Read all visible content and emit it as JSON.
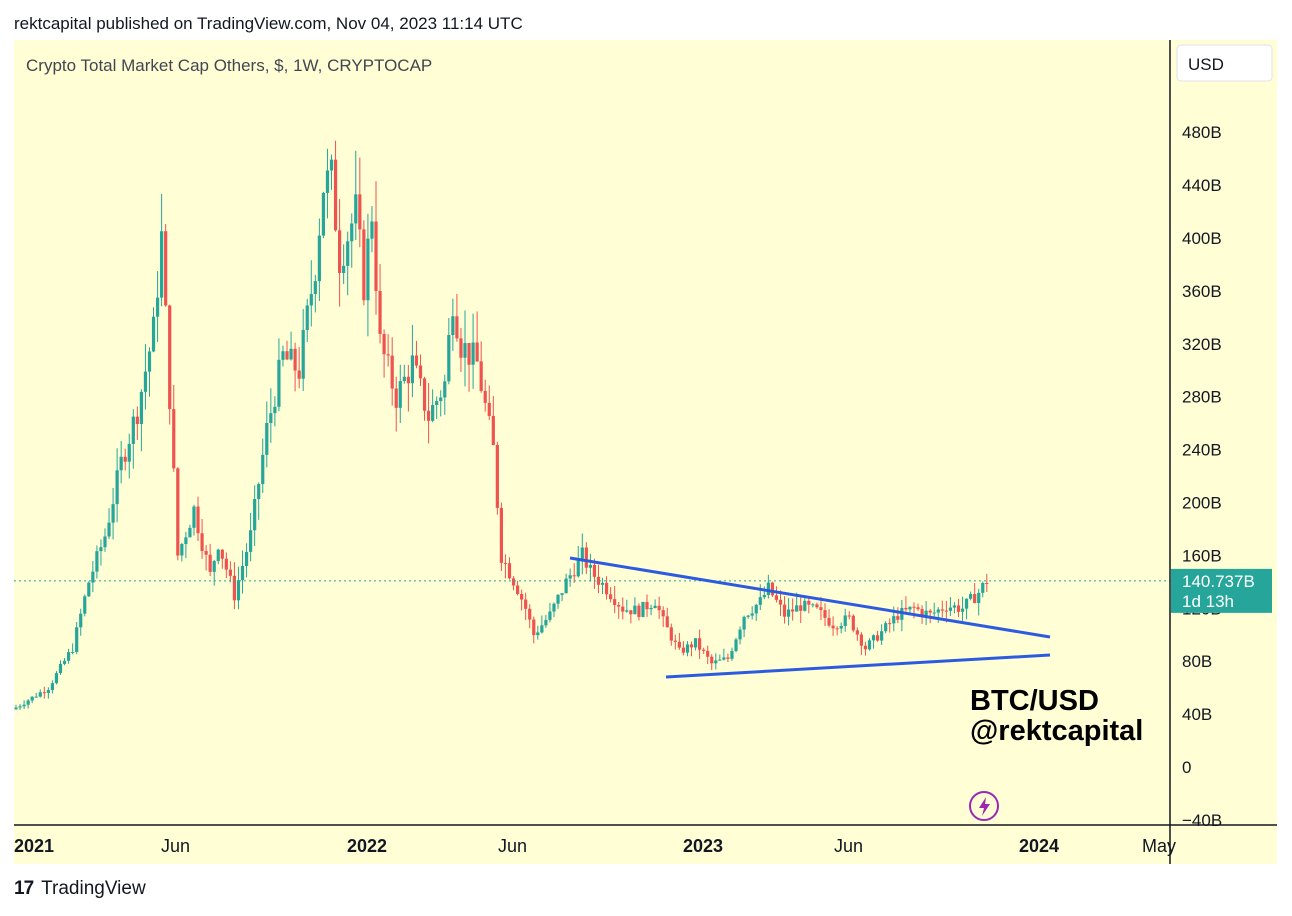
{
  "header": {
    "published_text": "rektcapital published on TradingView.com, Nov 04, 2023 11:14 UTC"
  },
  "chart_data": {
    "type": "candlestick",
    "title": "Crypto Total Market Cap Others, $, 1W, CRYPTOCAP",
    "currency_button": "USD",
    "y_ticks": [
      "480B",
      "440B",
      "400B",
      "360B",
      "320B",
      "280B",
      "240B",
      "200B",
      "160B",
      "120B",
      "80B",
      "40B",
      "0",
      "−40B"
    ],
    "y_tick_values": [
      480,
      440,
      400,
      360,
      320,
      280,
      240,
      200,
      160,
      120,
      80,
      40,
      0,
      -40
    ],
    "x_ticks": [
      "2021",
      "Jun",
      "2022",
      "Jun",
      "2023",
      "Jun",
      "2024",
      "May"
    ],
    "x_ticks_bold": [
      true,
      false,
      true,
      false,
      true,
      false,
      true,
      false
    ],
    "ylim": [
      -40,
      500
    ],
    "grid": false,
    "last_price": {
      "value": 140.737,
      "label": "140.737B",
      "countdown": "1d 13h",
      "color": "#26a69a"
    },
    "up_color": "#26a69a",
    "down_color": "#ef5350",
    "annotation": {
      "line1": "BTC/USD",
      "line2": "@rektcapital"
    },
    "trendlines_color": "#2d5bdf",
    "weekly_close_path": [
      [
        0,
        45
      ],
      [
        8,
        60
      ],
      [
        14,
        90
      ],
      [
        18,
        140
      ],
      [
        22,
        175
      ],
      [
        26,
        230
      ],
      [
        30,
        270
      ],
      [
        34,
        330
      ],
      [
        36,
        400
      ],
      [
        40,
        160
      ],
      [
        44,
        195
      ],
      [
        48,
        145
      ],
      [
        50,
        170
      ],
      [
        54,
        130
      ],
      [
        58,
        175
      ],
      [
        62,
        255
      ],
      [
        66,
        310
      ],
      [
        70,
        300
      ],
      [
        74,
        380
      ],
      [
        76,
        440
      ],
      [
        78,
        445
      ],
      [
        80,
        385
      ],
      [
        84,
        420
      ],
      [
        86,
        365
      ],
      [
        88,
        420
      ],
      [
        90,
        320
      ],
      [
        94,
        280
      ],
      [
        98,
        305
      ],
      [
        102,
        265
      ],
      [
        106,
        290
      ],
      [
        108,
        355
      ],
      [
        110,
        320
      ],
      [
        114,
        305
      ],
      [
        118,
        240
      ],
      [
        120,
        160
      ],
      [
        124,
        135
      ],
      [
        126,
        120
      ],
      [
        128,
        100
      ],
      [
        132,
        115
      ],
      [
        136,
        140
      ],
      [
        140,
        160
      ],
      [
        142,
        148
      ],
      [
        146,
        135
      ],
      [
        150,
        120
      ],
      [
        154,
        118
      ],
      [
        158,
        126
      ],
      [
        160,
        110
      ],
      [
        164,
        87
      ],
      [
        168,
        94
      ],
      [
        172,
        78
      ],
      [
        176,
        82
      ],
      [
        180,
        115
      ],
      [
        184,
        125
      ],
      [
        186,
        135
      ],
      [
        190,
        115
      ],
      [
        194,
        122
      ],
      [
        198,
        118
      ],
      [
        202,
        108
      ],
      [
        206,
        112
      ],
      [
        210,
        90
      ],
      [
        214,
        102
      ],
      [
        218,
        115
      ],
      [
        222,
        120
      ],
      [
        226,
        115
      ],
      [
        230,
        122
      ],
      [
        234,
        120
      ],
      [
        238,
        132
      ],
      [
        240,
        140.737
      ]
    ]
  }
}
